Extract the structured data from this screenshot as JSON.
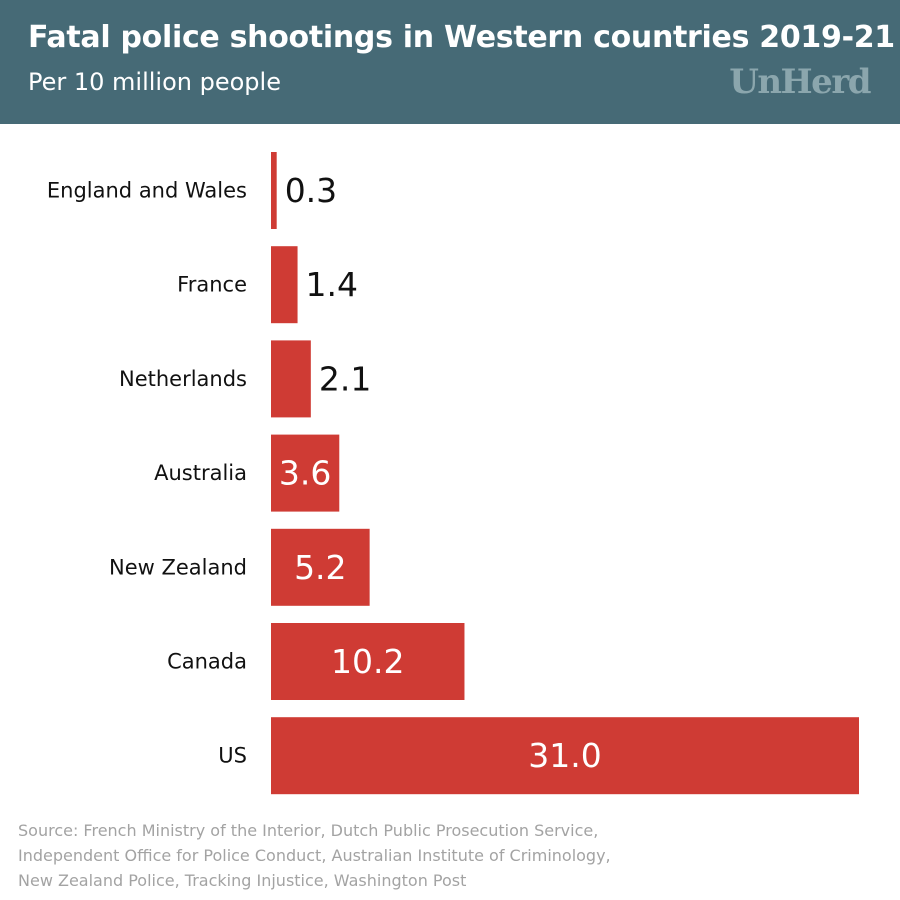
{
  "header": {
    "title": "Fatal police shootings in Western countries 2019-21",
    "subtitle": "Per 10 million people",
    "logo_text": "UnHerd"
  },
  "colors": {
    "header_bg": "#466a76",
    "bar": "#cf3b34",
    "logo": "#8ba6ad",
    "source_text": "#a3a3a3"
  },
  "chart_data": {
    "type": "bar",
    "orientation": "horizontal",
    "title": "Fatal police shootings in Western countries 2019-21",
    "subtitle": "Per 10 million people",
    "categories": [
      "England and Wales",
      "France",
      "Netherlands",
      "Australia",
      "New Zealand",
      "Canada",
      "US"
    ],
    "values": [
      0.3,
      1.4,
      2.1,
      3.6,
      5.2,
      10.2,
      31.0
    ],
    "value_labels": [
      "0.3",
      "1.4",
      "2.1",
      "3.6",
      "5.2",
      "10.2",
      "31.0"
    ],
    "xlim": [
      0,
      31.0
    ],
    "grid": false,
    "legend": "none"
  },
  "source": {
    "lines": [
      "Source:  French Ministry of the Interior, Dutch Public Prosecution Service,",
      "Independent Office for Police Conduct, Australian Institute of Criminology,",
      "New Zealand Police, Tracking Injustice, Washington Post"
    ]
  }
}
